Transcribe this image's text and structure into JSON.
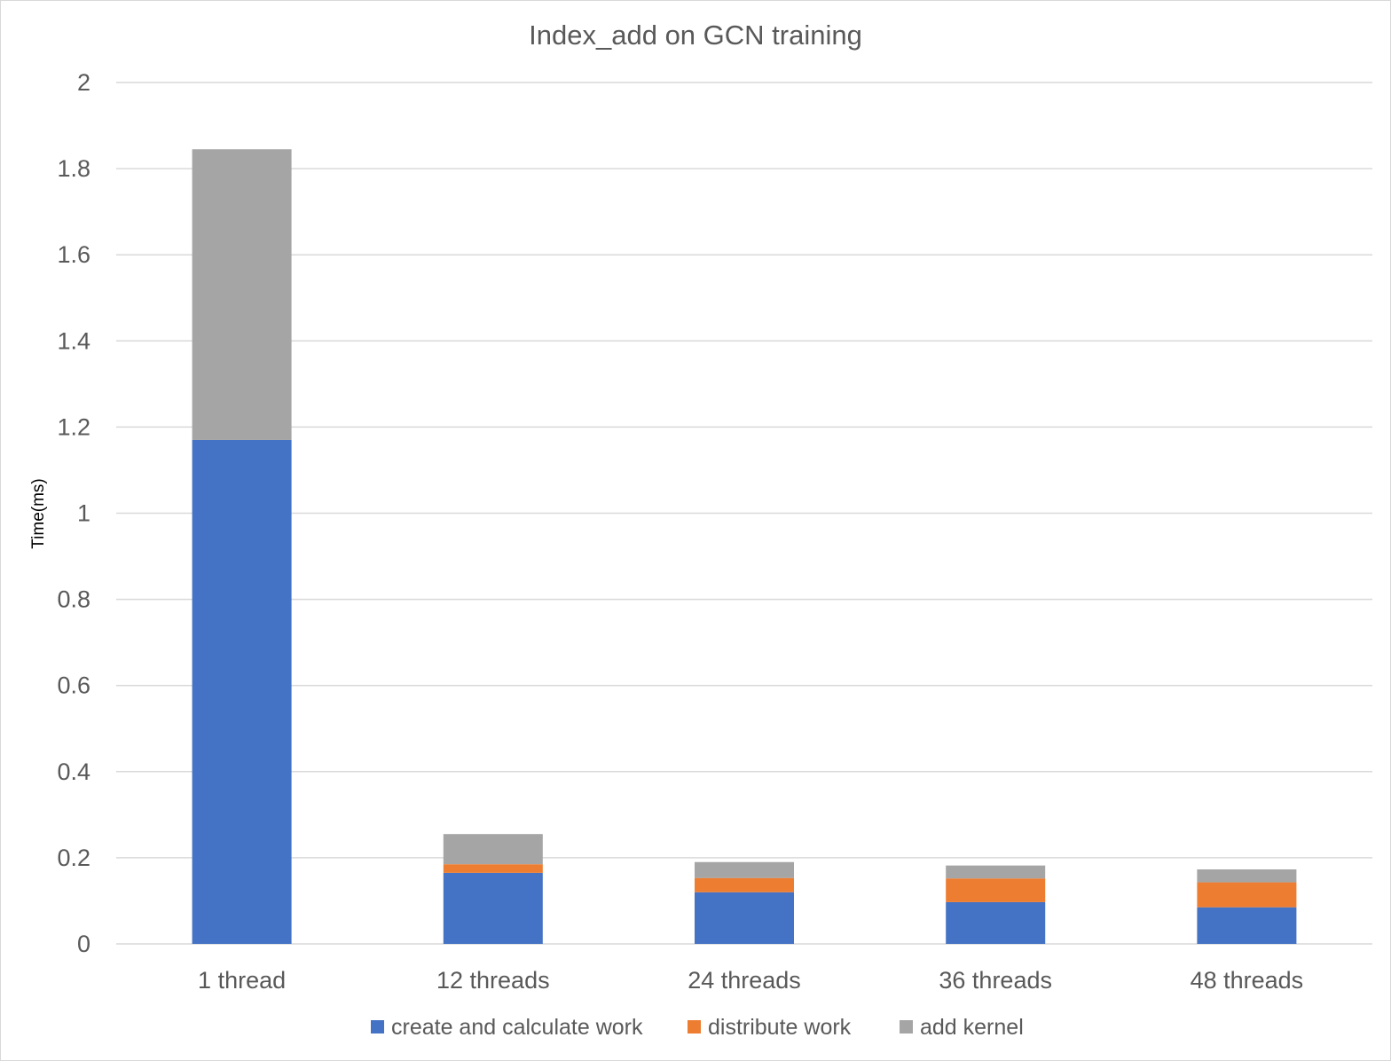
{
  "chart_data": {
    "type": "bar",
    "stacked": true,
    "title": "Index_add on GCN training",
    "xlabel": "",
    "ylabel": "Time(ms)",
    "ylim": [
      0,
      2
    ],
    "yticks": [
      0,
      0.2,
      0.4,
      0.6,
      0.8,
      1,
      1.2,
      1.4,
      1.6,
      1.8,
      2
    ],
    "ytick_labels": [
      "0",
      "0.2",
      "0.4",
      "0.6",
      "0.8",
      "1",
      "1.2",
      "1.4",
      "1.6",
      "1.8",
      "2"
    ],
    "grid": true,
    "legend_position": "bottom",
    "categories": [
      "1 thread",
      "12 threads",
      "24 threads",
      "36 threads",
      "48 threads"
    ],
    "series": [
      {
        "name": "create and calculate work",
        "color": "#4472C4",
        "values": [
          1.17,
          0.165,
          0.12,
          0.097,
          0.085
        ]
      },
      {
        "name": "distribute work",
        "color": "#ED7D31",
        "values": [
          0.0,
          0.02,
          0.033,
          0.055,
          0.058
        ]
      },
      {
        "name": "add kernel",
        "color": "#A5A5A5",
        "values": [
          0.675,
          0.07,
          0.037,
          0.03,
          0.03
        ]
      }
    ]
  }
}
